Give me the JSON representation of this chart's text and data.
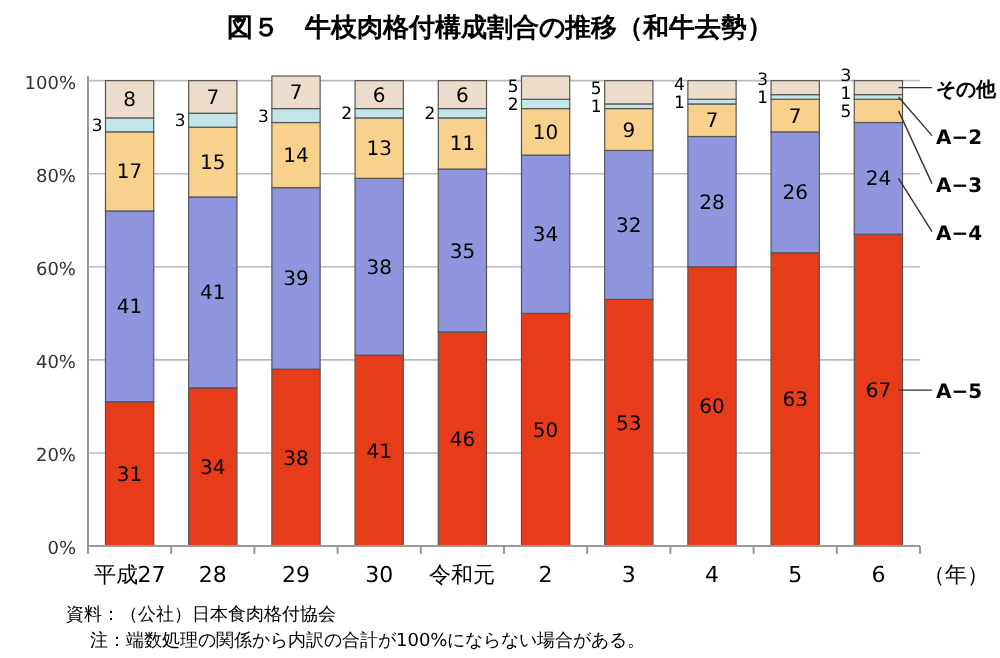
{
  "chart_data": {
    "type": "bar",
    "stacked": true,
    "title": "図５　牛枝肉格付構成割合の推移（和牛去勢）",
    "categories": [
      "平成27",
      "28",
      "29",
      "30",
      "令和元",
      "2",
      "3",
      "4",
      "5",
      "6"
    ],
    "xlabel": "（年）",
    "series": [
      {
        "name": "A−5",
        "color": "#e63c1a",
        "values": [
          31,
          34,
          38,
          41,
          46,
          50,
          53,
          60,
          63,
          67
        ]
      },
      {
        "name": "A−4",
        "color": "#8f96de",
        "values": [
          41,
          41,
          39,
          38,
          35,
          34,
          32,
          28,
          26,
          24
        ]
      },
      {
        "name": "A−3",
        "color": "#f8d18c",
        "values": [
          17,
          15,
          14,
          13,
          11,
          10,
          9,
          7,
          7,
          5
        ]
      },
      {
        "name": "A−2",
        "color": "#c4e6ea",
        "values": [
          3,
          3,
          3,
          2,
          2,
          2,
          1,
          1,
          1,
          1
        ]
      },
      {
        "name": "その他",
        "color": "#ecdccb",
        "values": [
          8,
          7,
          7,
          6,
          6,
          5,
          5,
          4,
          3,
          3
        ]
      }
    ],
    "ylim": [
      0,
      101
    ],
    "yticks": [
      {
        "value": 0,
        "label": "0%"
      },
      {
        "value": 20,
        "label": "20%"
      },
      {
        "value": 40,
        "label": "40%"
      },
      {
        "value": 60,
        "label": "60%"
      },
      {
        "value": 80,
        "label": "80%"
      },
      {
        "value": 100,
        "label": "100%"
      }
    ],
    "grid": "y",
    "data_labels": true,
    "annotations": [
      "資料：（公社）日本食肉格付協会",
      "注：端数処理の関係から内訳の合計が100%にならない場合がある。"
    ]
  }
}
